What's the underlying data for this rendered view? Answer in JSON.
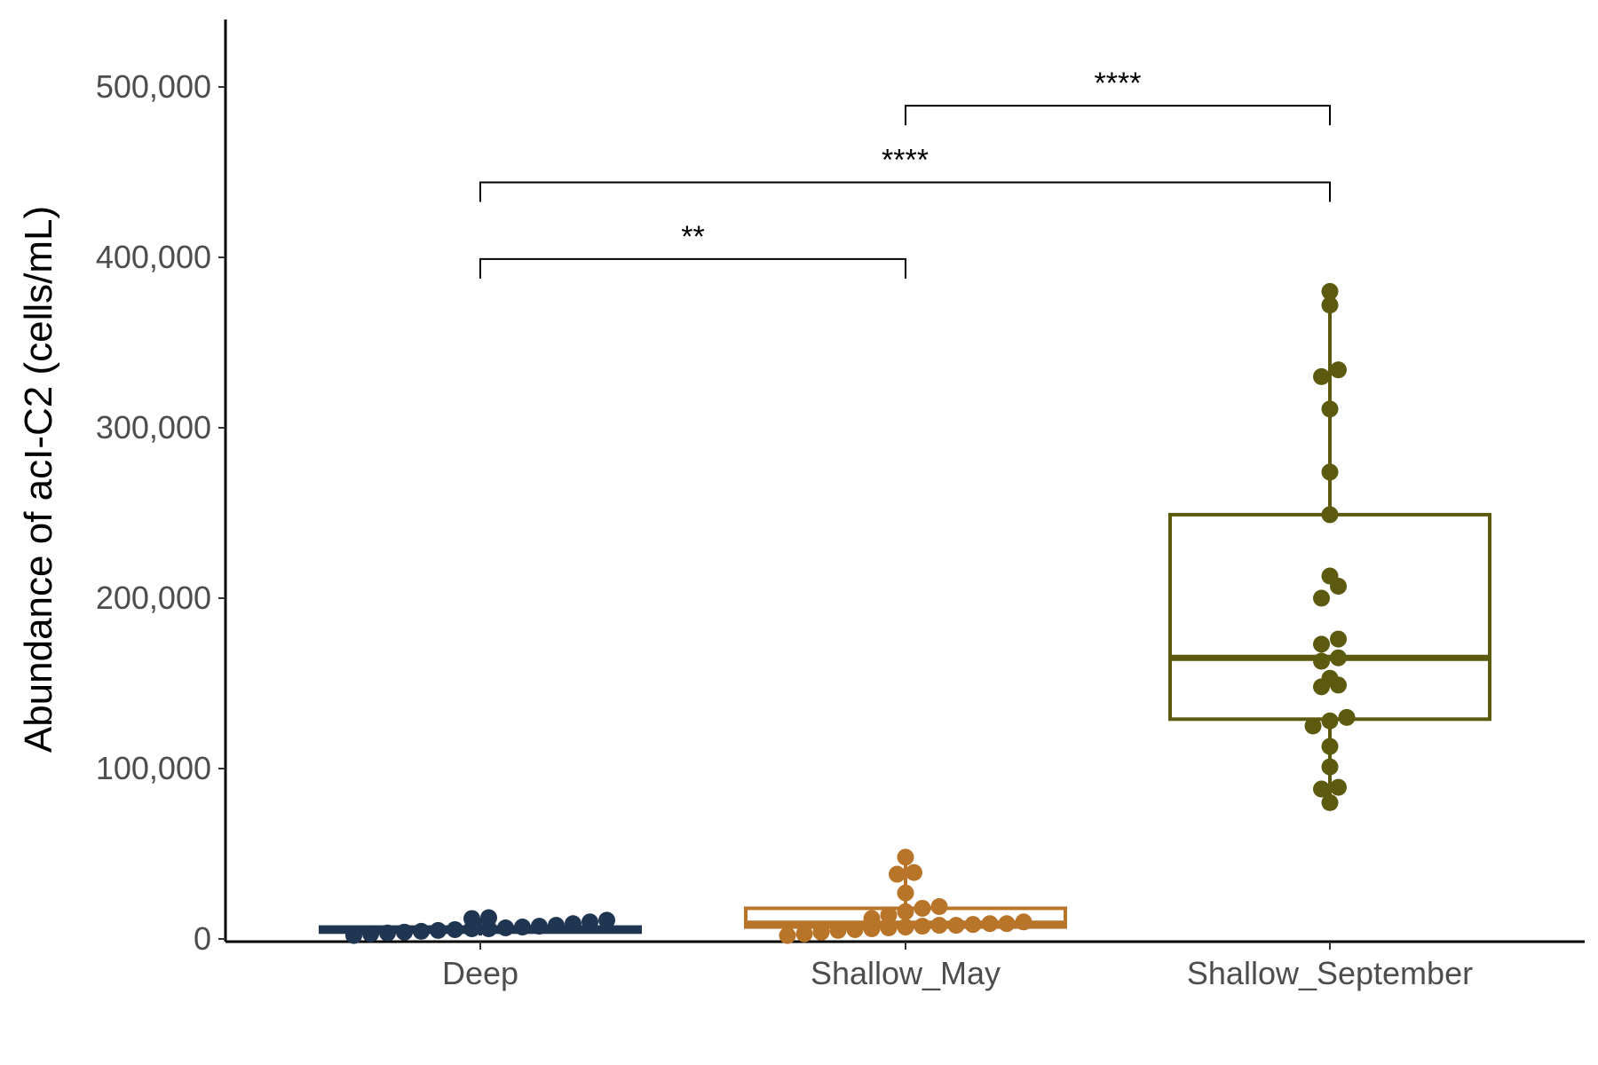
{
  "chart_data": {
    "type": "box",
    "title": "",
    "xlabel": "",
    "ylabel": "Abundance of acI-C2 (cells/mL)",
    "ylim": [
      0,
      540000
    ],
    "y_ticks": [
      {
        "value": 0,
        "label": "0"
      },
      {
        "value": 100000,
        "label": "100,000"
      },
      {
        "value": 200000,
        "label": "200,000"
      },
      {
        "value": 300000,
        "label": "300,000"
      },
      {
        "value": 400000,
        "label": "400,000"
      },
      {
        "value": 500000,
        "label": "500,000"
      }
    ],
    "grid": false,
    "legend": "none",
    "categories": [
      "Deep",
      "Shallow_May",
      "Shallow_September"
    ],
    "groups": [
      {
        "name": "Deep",
        "color": "#1f3552",
        "box": {
          "q1": 4000,
          "median": 5500,
          "q3": 7000,
          "whisker_low": 2000,
          "whisker_high": 12000
        },
        "points": [
          2000,
          3000,
          3500,
          4000,
          4500,
          5000,
          5500,
          6000,
          6000,
          6500,
          7000,
          7500,
          8000,
          9000,
          10000,
          11000,
          12000,
          12500
        ]
      },
      {
        "name": "Shallow_May",
        "color": "#b8752a",
        "box": {
          "q1": 7000,
          "median": 9000,
          "q3": 18000,
          "whisker_low": 2000,
          "whisker_high": 48000
        },
        "points": [
          2000,
          3000,
          4000,
          5000,
          5500,
          6000,
          6500,
          7000,
          7500,
          8000,
          8000,
          8500,
          9000,
          9000,
          10000,
          12000,
          14000,
          16000,
          18000,
          19000,
          27000,
          38000,
          39000,
          48000
        ]
      },
      {
        "name": "Shallow_September",
        "color": "#5c5a0f",
        "box": {
          "q1": 129000,
          "median": 165000,
          "q3": 249000,
          "whisker_low": 80000,
          "whisker_high": 380000
        },
        "points": [
          80000,
          88000,
          89000,
          101000,
          113000,
          125000,
          128000,
          130000,
          148000,
          149000,
          153000,
          163000,
          165000,
          173000,
          176000,
          200000,
          207000,
          213000,
          249000,
          274000,
          311000,
          330000,
          334000,
          372000,
          380000
        ]
      }
    ],
    "annotations": [
      {
        "from": "Deep",
        "to": "Shallow_May",
        "y": 399000,
        "label": "**"
      },
      {
        "from": "Deep",
        "to": "Shallow_September",
        "y": 444000,
        "label": "****"
      },
      {
        "from": "Shallow_May",
        "to": "Shallow_September",
        "y": 489000,
        "label": "****"
      }
    ]
  }
}
